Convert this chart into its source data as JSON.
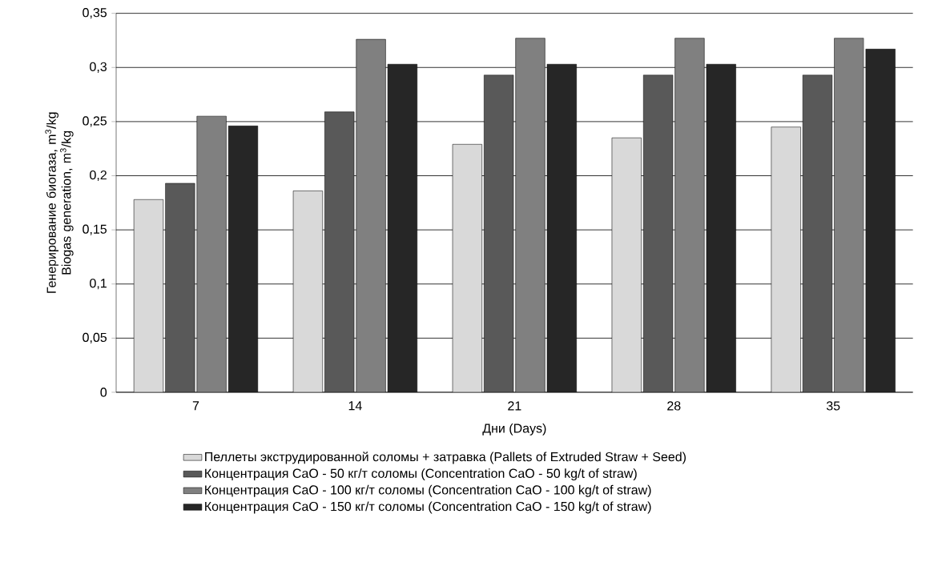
{
  "chart_data": {
    "type": "bar",
    "xlabel": "Дни (Days)",
    "ylabel": "Генерирование биогаза, m$^{3}$/kg Biogas generation, m$^{3}$/kg",
    "categories": [
      "7",
      "14",
      "21",
      "28",
      "35"
    ],
    "series": [
      {
        "name": "Пеллеты экструдированной соломы + затравка (Pallets of Extruded Straw + Seed)",
        "color": "#d9d9d9",
        "values": [
          0.178,
          0.186,
          0.229,
          0.235,
          0.245
        ]
      },
      {
        "name": "Концентрация CaO - 50 кг/т соломы (Concentration CaO - 50 kg/t of straw)",
        "color": "#595959",
        "values": [
          0.193,
          0.259,
          0.293,
          0.293,
          0.293
        ]
      },
      {
        "name": "Концентрация CaO - 100 кг/т соломы (Concentration CaO - 100 kg/t of straw)",
        "color": "#808080",
        "values": [
          0.255,
          0.326,
          0.327,
          0.327,
          0.327
        ]
      },
      {
        "name": "Концентрация CaO - 150 кг/т соломы (Concentration CaO - 150 kg/t of straw)",
        "color": "#262626",
        "values": [
          0.246,
          0.303,
          0.303,
          0.303,
          0.317
        ]
      }
    ],
    "ylim": [
      0,
      0.35
    ],
    "yticks": [
      0,
      {
        "value": 0.05,
        "label": "0,05"
      },
      {
        "value": 0.1,
        "label": "0,1"
      },
      {
        "value": 0.15,
        "label": "0,15"
      },
      {
        "value": 0.2,
        "label": "0,2"
      },
      {
        "value": 0.25,
        "label": "0,25"
      },
      {
        "value": 0.3,
        "label": "0,3"
      },
      {
        "value": 0.35,
        "label": "0,35"
      }
    ],
    "grid": "y",
    "legend": "bottom"
  }
}
